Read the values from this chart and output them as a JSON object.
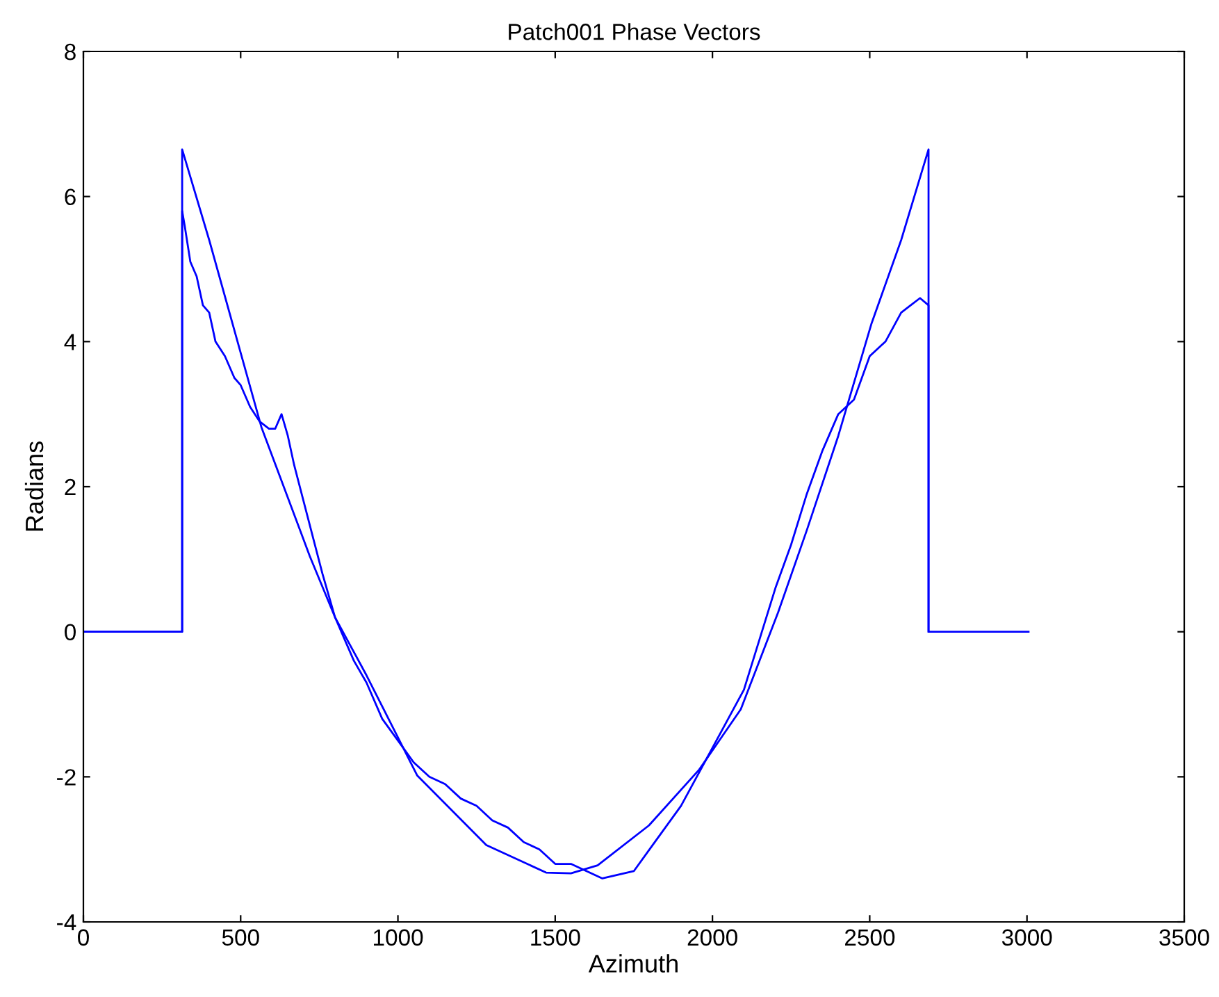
{
  "chart_data": {
    "type": "line",
    "title": "Patch001 Phase Vectors",
    "xlabel": "Azimuth",
    "ylabel": "Radians",
    "xlim": [
      0,
      3500
    ],
    "xticks": [
      0,
      500,
      1000,
      1500,
      2000,
      2500,
      3000,
      3500
    ],
    "ylim": [
      -4,
      8
    ],
    "yticks": [
      -4,
      -2,
      0,
      2,
      4,
      6,
      8
    ],
    "grid": false,
    "legend": false,
    "marker": "none",
    "line_style": "solid",
    "series": [
      {
        "color": "#0000ff",
        "x": [
          0,
          314,
          314,
          322,
          340,
          360,
          380,
          400,
          420,
          450,
          480,
          500,
          530,
          560,
          590,
          610,
          630,
          650,
          670,
          700,
          730,
          760,
          800,
          830,
          860,
          900,
          950,
          1000,
          1050,
          1100,
          1150,
          1200,
          1250,
          1300,
          1350,
          1400,
          1450,
          1500,
          1550,
          1600,
          1650,
          1700,
          1750,
          1800,
          1850,
          1900,
          1950,
          2000,
          2050,
          2100,
          2150,
          2200,
          2250,
          2300,
          2350,
          2400,
          2450,
          2500,
          2550,
          2600,
          2630,
          2660,
          2687,
          2687,
          3005
        ],
        "values": [
          0,
          0,
          5.8,
          5.6,
          5.1,
          4.9,
          4.5,
          4.4,
          4.0,
          3.8,
          3.5,
          3.4,
          3.1,
          2.9,
          2.8,
          2.8,
          3.0,
          2.7,
          2.3,
          1.8,
          1.3,
          0.8,
          0.2,
          -0.1,
          -0.4,
          -0.7,
          -1.2,
          -1.5,
          -1.8,
          -2.0,
          -2.1,
          -2.3,
          -2.4,
          -2.6,
          -2.7,
          -2.9,
          -3.0,
          -3.2,
          -3.2,
          -3.3,
          -3.4,
          -3.35,
          -3.3,
          -3.0,
          -2.7,
          -2.4,
          -2.0,
          -1.6,
          -1.2,
          -0.8,
          -0.1,
          0.6,
          1.2,
          1.9,
          2.5,
          3.0,
          3.2,
          3.8,
          4.0,
          4.4,
          4.5,
          4.6,
          4.5,
          0,
          0
        ]
      },
      {
        "color": "#0000ff",
        "x": [
          0,
          314,
          314,
          400,
          566,
          720,
          800,
          900,
          1061,
          1281,
          1471,
          1550,
          1635,
          1798,
          1958,
          2090,
          2209,
          2300,
          2400,
          2505,
          2600,
          2687,
          2687
        ],
        "values": [
          0,
          0,
          6.65,
          5.4,
          2.82,
          1.04,
          0.2,
          -0.6,
          -1.98,
          -2.94,
          -3.32,
          -3.33,
          -3.22,
          -2.67,
          -1.9,
          -1.07,
          0.27,
          1.4,
          2.7,
          4.24,
          5.4,
          6.65,
          0
        ]
      }
    ]
  }
}
